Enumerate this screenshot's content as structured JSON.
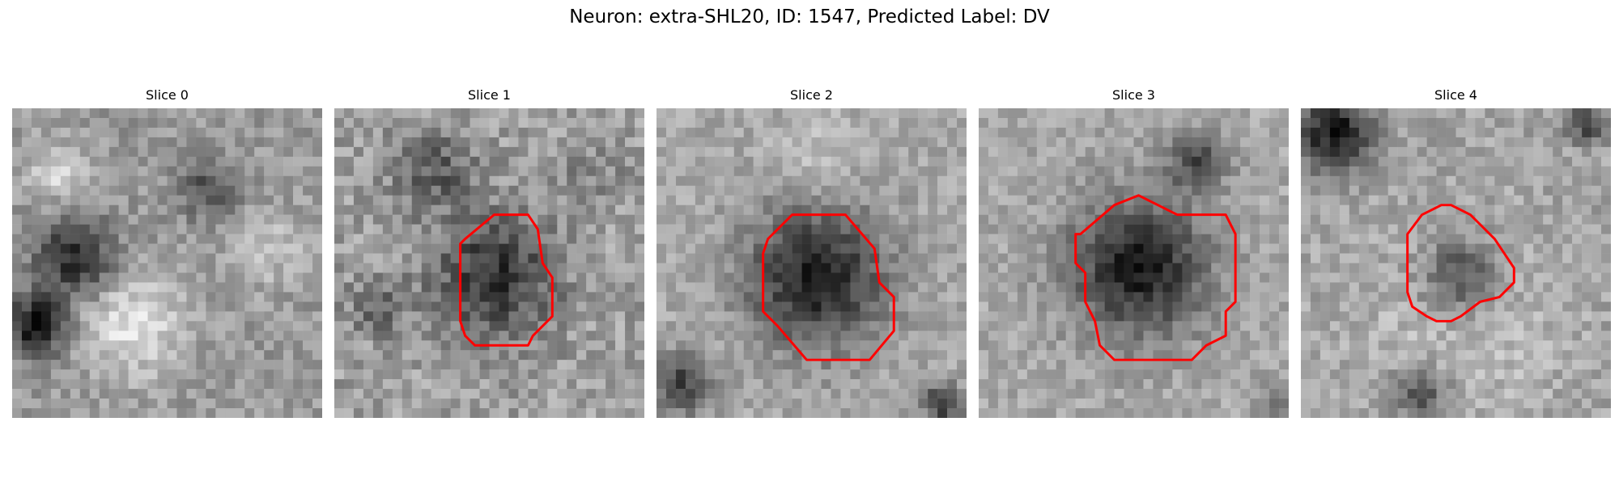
{
  "figure": {
    "title": "Neuron: extra-SHL20, ID: 1547, Predicted Label: DV"
  },
  "panels": [
    {
      "title": "Slice 0",
      "contour": null
    },
    {
      "title": "Slice 1",
      "contour": [
        [
          13.5,
          13.5
        ],
        [
          16.5,
          11
        ],
        [
          20,
          11
        ],
        [
          21,
          12.5
        ],
        [
          21.5,
          16
        ],
        [
          22.5,
          17.5
        ],
        [
          22.5,
          21.5
        ],
        [
          20.5,
          23.5
        ],
        [
          20,
          24.5
        ],
        [
          14.5,
          24.5
        ],
        [
          13.5,
          23.5
        ],
        [
          13,
          22
        ],
        [
          13,
          14
        ]
      ]
    },
    {
      "title": "Slice 2",
      "contour": [
        [
          11.5,
          13.5
        ],
        [
          13,
          12
        ],
        [
          14,
          11
        ],
        [
          19.5,
          11
        ],
        [
          22.5,
          14.5
        ],
        [
          23,
          18
        ],
        [
          24.5,
          19.5
        ],
        [
          24.5,
          23
        ],
        [
          22,
          26
        ],
        [
          15.5,
          26
        ],
        [
          12.5,
          22.5
        ],
        [
          11,
          21
        ],
        [
          11,
          15
        ]
      ]
    },
    {
      "title": "Slice 3",
      "contour": [
        [
          10.5,
          13
        ],
        [
          14,
          10
        ],
        [
          16.5,
          9
        ],
        [
          18.5,
          10
        ],
        [
          20.5,
          11
        ],
        [
          25.5,
          11
        ],
        [
          26.5,
          13
        ],
        [
          26.5,
          20
        ],
        [
          25.5,
          21
        ],
        [
          25.5,
          23.5
        ],
        [
          23.5,
          24.5
        ],
        [
          22,
          26
        ],
        [
          14,
          26
        ],
        [
          12.5,
          24.5
        ],
        [
          12,
          22
        ],
        [
          11,
          20
        ],
        [
          11,
          17
        ],
        [
          10,
          16
        ],
        [
          10,
          13
        ]
      ]
    },
    {
      "title": "Slice 4",
      "contour": [
        [
          11,
          13
        ],
        [
          12.5,
          11
        ],
        [
          14.5,
          10
        ],
        [
          15.5,
          10
        ],
        [
          17.5,
          11
        ],
        [
          18.5,
          12
        ],
        [
          20,
          13.5
        ],
        [
          21,
          15
        ],
        [
          22,
          16.5
        ],
        [
          22,
          18
        ],
        [
          20.5,
          19.5
        ],
        [
          18.5,
          20
        ],
        [
          16.5,
          21.5
        ],
        [
          15.5,
          22
        ],
        [
          14,
          22
        ],
        [
          13,
          21.5
        ],
        [
          11.5,
          20.5
        ],
        [
          11,
          19
        ],
        [
          11,
          14
        ]
      ]
    }
  ],
  "colors": {
    "contour": "#ff0000"
  }
}
